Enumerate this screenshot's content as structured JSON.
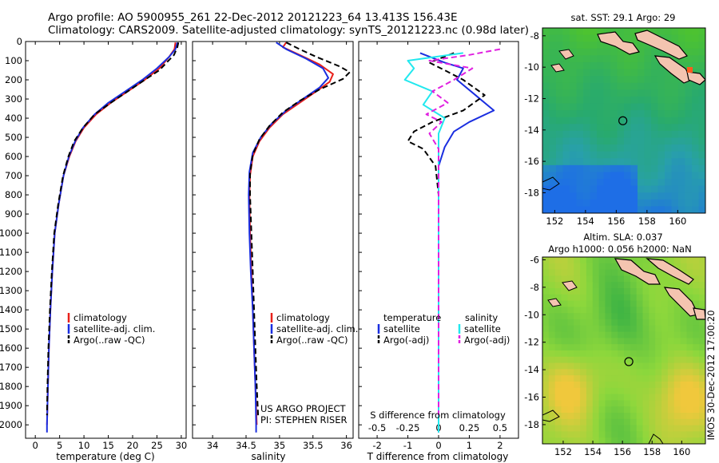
{
  "header": {
    "line1": "Argo profile: AO 5900955_261 22-Dec-2012 20121223_64 13.413S 156.43E",
    "line2": "Climatology: CARS2009. Satellite-adjusted climatology: synTS_20121223.nc (0.98d later)"
  },
  "colors": {
    "climatology": "#e8201a",
    "satellite": "#1a2ee0",
    "argo": "#000000",
    "satellite_salinity": "#22e8ee",
    "argo_salinity": "#e020e0"
  },
  "side_text": "IMOS 30-Dec-2012 17:00:20",
  "chart_data": [
    {
      "id": "temperature",
      "type": "line",
      "xlabel": "temperature (deg C)",
      "ylabel": "",
      "xlim": [
        -2,
        31
      ],
      "ylim": [
        2070,
        0
      ],
      "xticks": [
        0,
        5,
        10,
        15,
        20,
        25,
        30
      ],
      "xtick_labels": [
        "0",
        "5",
        "10",
        "15",
        "20",
        "25",
        "30"
      ],
      "yticks": [
        0,
        100,
        200,
        300,
        400,
        500,
        600,
        700,
        800,
        900,
        1000,
        1100,
        1200,
        1300,
        1400,
        1500,
        1600,
        1700,
        1800,
        1900,
        2000
      ],
      "ytick_labels": [
        "0",
        "100",
        "200",
        "300",
        "400",
        "500",
        "600",
        "700",
        "800",
        "900",
        "1000",
        "1100",
        "1200",
        "1300",
        "1400",
        "1500",
        "1600",
        "1700",
        "1800",
        "1900",
        "2000"
      ],
      "legend": [
        "climatology",
        "satellite-adj. clim.",
        "Argo(..raw -QC)"
      ],
      "series": [
        {
          "name": "climatology",
          "color": "#e8201a",
          "dash": "",
          "points": [
            [
              28.8,
              5
            ],
            [
              28.6,
              40
            ],
            [
              27.5,
              80
            ],
            [
              25.5,
              140
            ],
            [
              22.5,
              200
            ],
            [
              19,
              260
            ],
            [
              15.5,
              320
            ],
            [
              12.5,
              380
            ],
            [
              10,
              450
            ],
            [
              8.3,
              520
            ],
            [
              7,
              600
            ],
            [
              5.8,
              700
            ],
            [
              4.8,
              850
            ],
            [
              4,
              1000
            ],
            [
              3.5,
              1200
            ],
            [
              3.1,
              1400
            ],
            [
              2.8,
              1600
            ],
            [
              2.6,
              1800
            ],
            [
              2.4,
              2000
            ]
          ]
        },
        {
          "name": "satellite-adj. clim.",
          "color": "#1a2ee0",
          "dash": "",
          "points": [
            [
              29.2,
              5
            ],
            [
              28.8,
              40
            ],
            [
              27.5,
              80
            ],
            [
              25,
              140
            ],
            [
              22,
              200
            ],
            [
              18.5,
              260
            ],
            [
              15,
              320
            ],
            [
              12.2,
              380
            ],
            [
              9.8,
              450
            ],
            [
              8.2,
              520
            ],
            [
              6.9,
              600
            ],
            [
              5.8,
              700
            ],
            [
              4.8,
              850
            ],
            [
              4,
              1000
            ],
            [
              3.5,
              1200
            ],
            [
              3.1,
              1400
            ],
            [
              2.8,
              1600
            ],
            [
              2.6,
              1800
            ],
            [
              2.4,
              2000
            ],
            [
              2.4,
              2040
            ]
          ]
        },
        {
          "name": "Argo(..raw -QC)",
          "color": "#000000",
          "dash": "7,4",
          "points": [
            [
              29.4,
              5
            ],
            [
              29.2,
              30
            ],
            [
              28.5,
              70
            ],
            [
              27,
              110
            ],
            [
              25.5,
              150
            ],
            [
              22.5,
              200
            ],
            [
              19,
              260
            ],
            [
              15.5,
              320
            ],
            [
              12.2,
              380
            ],
            [
              9.8,
              450
            ],
            [
              8,
              520
            ],
            [
              6.8,
              600
            ],
            [
              5.7,
              700
            ],
            [
              4.7,
              850
            ],
            [
              3.9,
              1000
            ],
            [
              3.4,
              1200
            ],
            [
              3,
              1400
            ],
            [
              2.7,
              1600
            ],
            [
              2.5,
              1800
            ],
            [
              2.4,
              1950
            ]
          ]
        }
      ]
    },
    {
      "id": "salinity",
      "type": "line",
      "xlabel": "salinity",
      "xlim": [
        33.7,
        36.1
      ],
      "ylim": [
        2070,
        0
      ],
      "xticks": [
        34,
        34.5,
        35,
        35.5,
        36
      ],
      "xtick_labels": [
        "34",
        "34.5",
        "35",
        "35.5",
        "36"
      ],
      "legend": [
        "climatology",
        "satellite-adj. clim.",
        "Argo(..raw -QC)"
      ],
      "annotations": [
        "US ARGO PROJECT",
        "PI: STEPHEN RISER"
      ],
      "series": [
        {
          "name": "climatology",
          "color": "#e8201a",
          "dash": "",
          "points": [
            [
              35.1,
              5
            ],
            [
              35.05,
              30
            ],
            [
              35.3,
              70
            ],
            [
              35.6,
              120
            ],
            [
              35.8,
              170
            ],
            [
              35.75,
              210
            ],
            [
              35.55,
              260
            ],
            [
              35.3,
              320
            ],
            [
              35.05,
              380
            ],
            [
              34.85,
              450
            ],
            [
              34.7,
              520
            ],
            [
              34.6,
              600
            ],
            [
              34.56,
              700
            ],
            [
              34.55,
              800
            ],
            [
              34.56,
              1000
            ],
            [
              34.58,
              1200
            ],
            [
              34.6,
              1400
            ],
            [
              34.62,
              1600
            ],
            [
              34.64,
              1800
            ],
            [
              34.66,
              2000
            ]
          ]
        },
        {
          "name": "satellite-adj. clim.",
          "color": "#1a2ee0",
          "dash": "",
          "points": [
            [
              34.95,
              5
            ],
            [
              35.1,
              40
            ],
            [
              35.4,
              90
            ],
            [
              35.65,
              140
            ],
            [
              35.73,
              190
            ],
            [
              35.6,
              240
            ],
            [
              35.35,
              300
            ],
            [
              35.1,
              360
            ],
            [
              34.88,
              430
            ],
            [
              34.72,
              500
            ],
            [
              34.6,
              580
            ],
            [
              34.55,
              680
            ],
            [
              34.54,
              800
            ],
            [
              34.55,
              1000
            ],
            [
              34.57,
              1200
            ],
            [
              34.6,
              1400
            ],
            [
              34.62,
              1600
            ],
            [
              34.64,
              1800
            ],
            [
              34.65,
              2000
            ],
            [
              34.65,
              2040
            ]
          ]
        },
        {
          "name": "Argo(..raw -QC)",
          "color": "#000000",
          "dash": "7,4",
          "points": [
            [
              35.1,
              5
            ],
            [
              35.3,
              40
            ],
            [
              35.55,
              80
            ],
            [
              35.9,
              130
            ],
            [
              36.05,
              160
            ],
            [
              35.95,
              195
            ],
            [
              35.6,
              250
            ],
            [
              35.3,
              310
            ],
            [
              35.05,
              370
            ],
            [
              34.85,
              440
            ],
            [
              34.7,
              510
            ],
            [
              34.6,
              590
            ],
            [
              34.56,
              690
            ],
            [
              34.56,
              800
            ],
            [
              34.58,
              1000
            ],
            [
              34.6,
              1200
            ],
            [
              34.62,
              1400
            ],
            [
              34.64,
              1600
            ],
            [
              34.66,
              1800
            ],
            [
              34.68,
              1950
            ]
          ]
        }
      ]
    },
    {
      "id": "difference",
      "type": "line",
      "xlabel": "T difference from climatology",
      "top_xlabel": "S difference from climatology",
      "xlim": [
        -2.6,
        2.6
      ],
      "ylim": [
        2070,
        0
      ],
      "xticks": [
        -2,
        -1,
        0,
        1,
        2
      ],
      "xtick_labels": [
        "-2",
        "-1",
        "0",
        "1",
        "2"
      ],
      "top_xticks": [
        -2,
        -1,
        0,
        1,
        2
      ],
      "top_xtick_labels": [
        "-0.5",
        "-0.25",
        "0",
        "0.25",
        "0.5"
      ],
      "legend": {
        "temperature_title": "temperature",
        "salinity_title": "salinity",
        "items": [
          "satellite",
          "Argo(-adj)",
          "satellite",
          "Argo(-adj)"
        ]
      },
      "series": [
        {
          "name": "temperature satellite",
          "color": "#1a2ee0",
          "dash": "",
          "points": [
            [
              -0.6,
              60
            ],
            [
              0.2,
              110
            ],
            [
              0.8,
              140
            ],
            [
              0.6,
              200
            ],
            [
              1.2,
              280
            ],
            [
              1.8,
              360
            ],
            [
              1,
              420
            ],
            [
              0.5,
              470
            ],
            [
              0.2,
              550
            ],
            [
              0,
              650
            ],
            [
              0,
              800
            ],
            [
              0,
              1200
            ],
            [
              0,
              1600
            ],
            [
              0,
              2040
            ]
          ]
        },
        {
          "name": "temperature Argo(-adj)",
          "color": "#000000",
          "dash": "7,4",
          "points": [
            [
              0.5,
              60
            ],
            [
              -0.3,
              110
            ],
            [
              0.2,
              150
            ],
            [
              0.8,
              200
            ],
            [
              1.5,
              280
            ],
            [
              0.8,
              360
            ],
            [
              -0.2,
              420
            ],
            [
              -0.8,
              470
            ],
            [
              -1,
              520
            ],
            [
              -0.5,
              560
            ],
            [
              -0.1,
              650
            ],
            [
              0,
              800
            ],
            [
              0,
              1200
            ],
            [
              0,
              1600
            ],
            [
              0,
              1950
            ]
          ]
        },
        {
          "name": "salinity satellite",
          "color": "#22e8ee",
          "dash": "",
          "points": [
            [
              0.8,
              60
            ],
            [
              -1,
              100
            ],
            [
              -0.8,
              140
            ],
            [
              -1.1,
              200
            ],
            [
              -0.2,
              260
            ],
            [
              -0.5,
              330
            ],
            [
              0.2,
              400
            ],
            [
              0,
              480
            ],
            [
              0,
              600
            ],
            [
              0,
              800
            ],
            [
              0,
              1200
            ],
            [
              0,
              1600
            ],
            [
              0,
              2040
            ]
          ]
        },
        {
          "name": "salinity Argo(-adj)",
          "color": "#e020e0",
          "dash": "7,4",
          "points": [
            [
              2,
              40
            ],
            [
              1,
              70
            ],
            [
              -0.3,
              100
            ],
            [
              1.1,
              140
            ],
            [
              0.5,
              200
            ],
            [
              -0.2,
              260
            ],
            [
              0.3,
              320
            ],
            [
              -0.4,
              380
            ],
            [
              0.1,
              420
            ],
            [
              -0.3,
              480
            ],
            [
              0,
              560
            ],
            [
              0,
              800
            ],
            [
              0,
              1200
            ],
            [
              0,
              1600
            ],
            [
              0,
              1950
            ]
          ]
        }
      ]
    },
    {
      "id": "sst_map",
      "type": "heatmap",
      "title": "sat. SST: 29.1 Argo: 29",
      "xlim": [
        151.2,
        161.8
      ],
      "ylim": [
        -19.3,
        -7.5
      ],
      "xticks": [
        152,
        154,
        156,
        158,
        160
      ],
      "xtick_labels": [
        "152",
        "154",
        "156",
        "158",
        "160"
      ],
      "yticks": [
        -8,
        -10,
        -12,
        -14,
        -16,
        -18
      ],
      "ytick_labels": [
        "-8",
        "-10",
        "-12",
        "-14",
        "-16",
        "-18"
      ],
      "marker": {
        "lon": 156.43,
        "lat": -13.413
      }
    },
    {
      "id": "sla_map",
      "type": "heatmap",
      "title_lines": [
        "Altim. SLA: 0.037",
        "Argo h1000: 0.056 h2000: NaN"
      ],
      "xlim": [
        150.6,
        161.6
      ],
      "ylim": [
        -19.4,
        -5.8
      ],
      "xticks": [
        152,
        154,
        156,
        158,
        160
      ],
      "xtick_labels": [
        "152",
        "154",
        "156",
        "158",
        "160"
      ],
      "yticks": [
        -6,
        -8,
        -10,
        -12,
        -14,
        -16,
        -18
      ],
      "ytick_labels": [
        "-6",
        "-8",
        "-10",
        "-12",
        "-14",
        "-16",
        "-18"
      ],
      "marker": {
        "lon": 156.43,
        "lat": -13.413
      }
    }
  ]
}
